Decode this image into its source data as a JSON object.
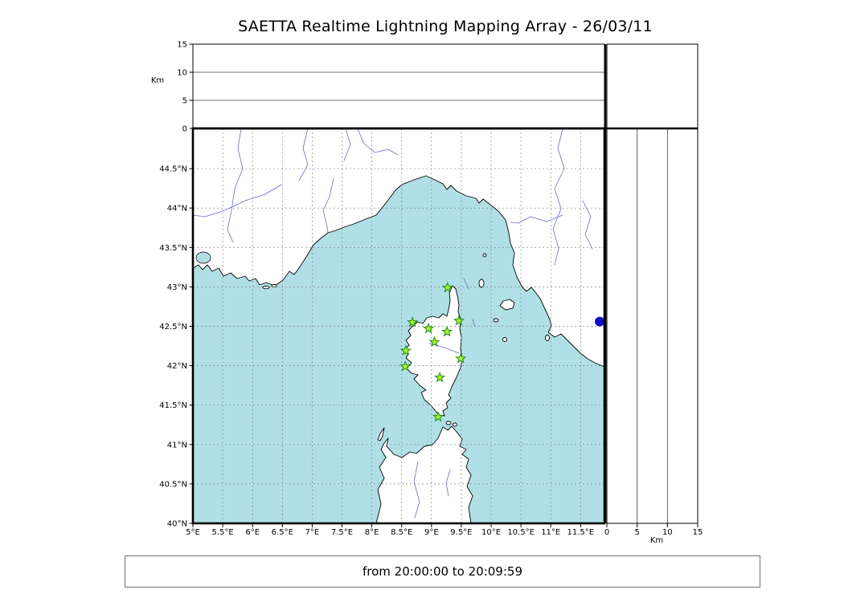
{
  "chart_data": {
    "type": "scatter",
    "title": "SAETTA Realtime Lightning Mapping Array - 26/03/11",
    "time_window": "from 20:00:00 to 20:09:59",
    "grid": true,
    "axes": {
      "lon": {
        "range": [
          5,
          11.9
        ],
        "ticks": [
          {
            "value": 5,
            "label": "5°E"
          },
          {
            "value": 5.5,
            "label": "5.5°E"
          },
          {
            "value": 6,
            "label": "6°E"
          },
          {
            "value": 6.5,
            "label": "6.5°E"
          },
          {
            "value": 7,
            "label": "7°E"
          },
          {
            "value": 7.5,
            "label": "7.5°E"
          },
          {
            "value": 8,
            "label": "8°E"
          },
          {
            "value": 8.5,
            "label": "8.5°E"
          },
          {
            "value": 9,
            "label": "9°E"
          },
          {
            "value": 9.5,
            "label": "9.5°E"
          },
          {
            "value": 10,
            "label": "10°E"
          },
          {
            "value": 10.5,
            "label": "10.5°E"
          },
          {
            "value": 11,
            "label": "11°E"
          },
          {
            "value": 11.5,
            "label": "11.5°E"
          }
        ]
      },
      "lat": {
        "range": [
          40,
          45.01
        ],
        "ticks": [
          {
            "value": 40,
            "label": "40°N"
          },
          {
            "value": 40.5,
            "label": "40.5°N"
          },
          {
            "value": 41,
            "label": "41°N"
          },
          {
            "value": 41.5,
            "label": "41.5°N"
          },
          {
            "value": 42,
            "label": "42°N"
          },
          {
            "value": 42.5,
            "label": "42.5°N"
          },
          {
            "value": 43,
            "label": "43°N"
          },
          {
            "value": 43.5,
            "label": "43.5°N"
          },
          {
            "value": 44,
            "label": "44°N"
          },
          {
            "value": 44.5,
            "label": "44.5°N"
          }
        ]
      },
      "alt": {
        "label": "Km",
        "range": [
          0,
          15
        ],
        "ticks": [
          {
            "value": 0,
            "label": "0"
          },
          {
            "value": 5,
            "label": "5"
          },
          {
            "value": 10,
            "label": "10"
          },
          {
            "value": 15,
            "label": "15"
          }
        ]
      }
    },
    "series": [
      {
        "name": "saetta-stations",
        "marker": "star",
        "fill": "#a8f42a",
        "stroke": "#1f8c1f",
        "size": 6,
        "points": [
          {
            "lon": 9.27,
            "lat": 42.99
          },
          {
            "lon": 8.68,
            "lat": 42.55
          },
          {
            "lon": 8.95,
            "lat": 42.47
          },
          {
            "lon": 9.26,
            "lat": 42.43
          },
          {
            "lon": 9.46,
            "lat": 42.57
          },
          {
            "lon": 9.05,
            "lat": 42.3
          },
          {
            "lon": 8.57,
            "lat": 42.19
          },
          {
            "lon": 8.56,
            "lat": 41.99
          },
          {
            "lon": 9.49,
            "lat": 42.09
          },
          {
            "lon": 9.14,
            "lat": 41.85
          },
          {
            "lon": 9.11,
            "lat": 41.35
          }
        ]
      },
      {
        "name": "offshore-marker",
        "marker": "circle",
        "fill": "#0f0fc0",
        "stroke": "none",
        "size": 6,
        "points": [
          {
            "lon": 11.82,
            "lat": 42.56
          }
        ]
      }
    ],
    "colors": {
      "sea": "#b0e0e6",
      "land": "#ffffff",
      "coast": "#000000",
      "grid": "#828282",
      "river": "#6a6ad4"
    }
  }
}
